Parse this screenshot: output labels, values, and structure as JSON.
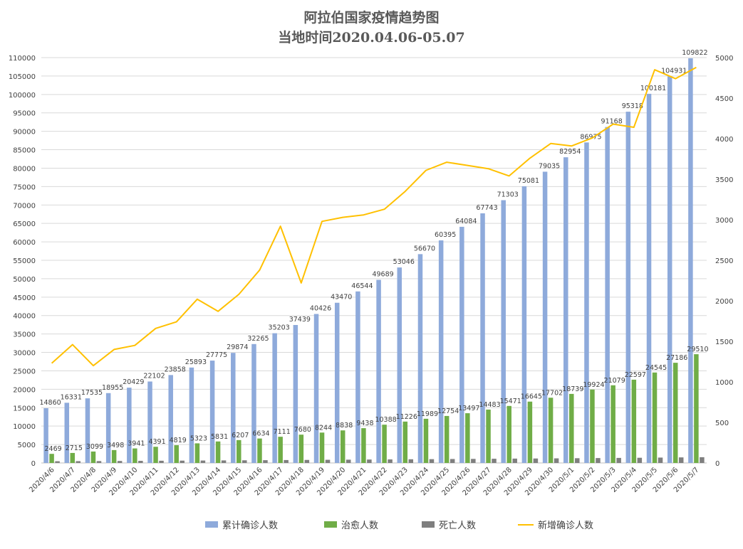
{
  "chart_data": {
    "type": "bar",
    "title": "阿拉伯国家疫情趋势图",
    "subtitle": "当地时间2020.04.06-05.07",
    "categories": [
      "2020/4/6",
      "2020/4/7",
      "2020/4/8",
      "2020/4/9",
      "2020/4/10",
      "2020/4/11",
      "2020/4/12",
      "2020/4/13",
      "2020/4/14",
      "2020/4/15",
      "2020/4/16",
      "2020/4/17",
      "2020/4/18",
      "2020/4/19",
      "2020/4/20",
      "2020/4/21",
      "2020/4/22",
      "2020/4/23",
      "2020/4/24",
      "2020/4/25",
      "2020/4/26",
      "2020/4/27",
      "2020/4/28",
      "2020/4/29",
      "2020/4/30",
      "2020/5/1",
      "2020/5/2",
      "2020/5/3",
      "2020/5/4",
      "2020/5/5",
      "2020/5/6",
      "2020/5/7"
    ],
    "left_axis": {
      "ylim": [
        0,
        110000
      ],
      "ticks": [
        0,
        5000,
        10000,
        15000,
        20000,
        25000,
        30000,
        35000,
        40000,
        45000,
        50000,
        55000,
        60000,
        65000,
        70000,
        75000,
        80000,
        85000,
        90000,
        95000,
        100000,
        105000,
        110000
      ]
    },
    "right_axis": {
      "ylim": [
        0,
        5000
      ],
      "ticks": [
        0,
        500,
        1000,
        1500,
        2000,
        2500,
        3000,
        3500,
        4000,
        4500,
        5000
      ]
    },
    "grid": true,
    "legend_position": "bottom",
    "series": [
      {
        "name": "累计确诊人数",
        "kind": "bar",
        "axis": "left",
        "color": "#8eaadb",
        "values": [
          14860,
          16331,
          17535,
          18955,
          20429,
          22102,
          23858,
          25893,
          27775,
          29874,
          32265,
          35203,
          37439,
          40426,
          43470,
          46544,
          49689,
          53046,
          56670,
          60395,
          64084,
          67743,
          71303,
          75081,
          79035,
          82954,
          86975,
          91168,
          95318,
          100181,
          104931,
          109822
        ]
      },
      {
        "name": "治愈人数",
        "kind": "bar",
        "axis": "left",
        "color": "#70ad47",
        "values": [
          2469,
          2715,
          3099,
          3498,
          3941,
          4391,
          4819,
          5323,
          5831,
          6207,
          6634,
          7111,
          7680,
          8244,
          8838,
          9438,
          10388,
          11226,
          11989,
          12754,
          13497,
          14483,
          15471,
          16645,
          17702,
          18739,
          19924,
          21079,
          22597,
          24545,
          27186,
          29510
        ]
      },
      {
        "name": "死亡人数",
        "kind": "bar",
        "axis": "left",
        "color": "#7f7f7f",
        "values": [
          470,
          490,
          510,
          540,
          570,
          600,
          630,
          660,
          690,
          720,
          750,
          790,
          820,
          860,
          890,
          930,
          960,
          1000,
          1030,
          1070,
          1100,
          1140,
          1180,
          1210,
          1250,
          1290,
          1330,
          1370,
          1410,
          1460,
          1510,
          1560
        ]
      },
      {
        "name": "新增确诊人数",
        "kind": "line",
        "axis": "right",
        "color": "#ffc000",
        "values": [
          1230,
          1460,
          1200,
          1400,
          1450,
          1660,
          1740,
          2020,
          1870,
          2080,
          2380,
          2920,
          2220,
          2980,
          3030,
          3060,
          3130,
          3350,
          3610,
          3710,
          3670,
          3630,
          3540,
          3760,
          3940,
          3910,
          4010,
          4180,
          4140,
          4850,
          4740,
          4880
        ]
      }
    ]
  },
  "legend": {
    "total": "累计确诊人数",
    "recovered": "治愈人数",
    "deaths": "死亡人数",
    "new": "新增确诊人数"
  }
}
